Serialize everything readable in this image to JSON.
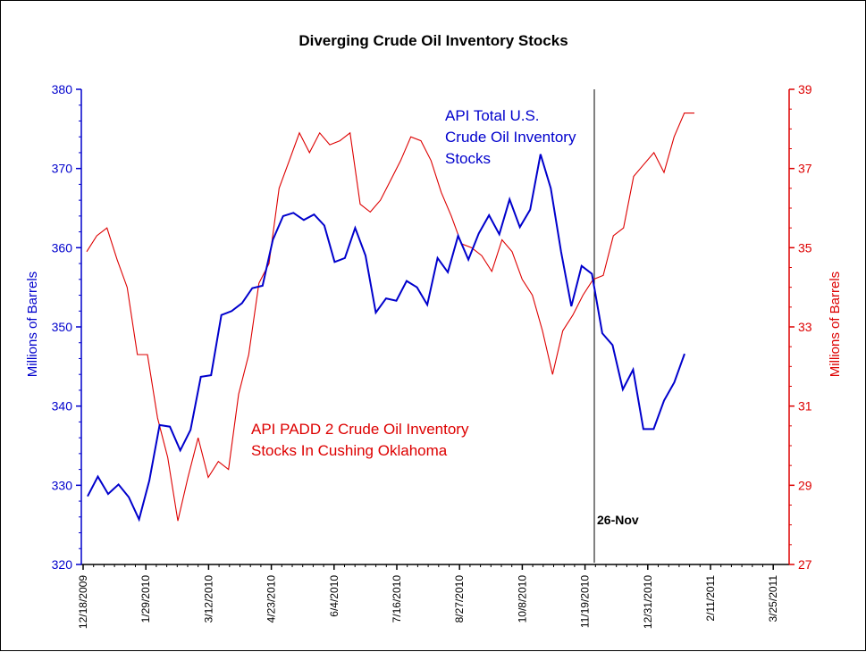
{
  "chart_data": {
    "type": "line",
    "title": "Diverging Crude Oil Inventory Stocks",
    "ylabel_left": "Millions of Barrels",
    "ylabel_right": "Millions of Barrels",
    "x_tick_labels": [
      "12/18/2009",
      "1/29/2010",
      "3/12/2010",
      "4/23/2010",
      "6/4/2010",
      "7/16/2010",
      "8/27/2010",
      "10/8/2010",
      "11/19/2010",
      "12/31/2010",
      "2/11/2011",
      "3/25/2011"
    ],
    "ylim_left": [
      320,
      380
    ],
    "yticks_left": [
      320,
      330,
      340,
      350,
      360,
      370,
      380
    ],
    "ylim_right": [
      27,
      39
    ],
    "yticks_right": [
      27,
      29,
      31,
      33,
      35,
      37,
      39
    ],
    "series": [
      {
        "name": "API Total U.S. Crude Oil Inventory Stocks",
        "axis": "left",
        "color": "#0000cc",
        "values": [
          328.6,
          331.1,
          328.9,
          330.1,
          328.5,
          325.7,
          330.6,
          337.6,
          337.4,
          334.4,
          337.0,
          343.7,
          343.9,
          351.5,
          352.0,
          353.0,
          354.9,
          355.2,
          361.0,
          364.0,
          364.4,
          363.5,
          364.2,
          362.8,
          358.2,
          358.7,
          362.5,
          359.0,
          351.8,
          353.6,
          353.3,
          355.8,
          355.0,
          352.8,
          358.7,
          356.9,
          361.5,
          358.5,
          361.8,
          364.1,
          361.7,
          366.1,
          362.6,
          364.8,
          371.8,
          367.5,
          359.5,
          352.6,
          357.7,
          356.7,
          349.2,
          347.7,
          342.1,
          344.6,
          337.1,
          337.1,
          340.7,
          343.0,
          346.6
        ]
      },
      {
        "name": "API PADD 2 Crude Oil Inventory Stocks In Cushing Oklahoma",
        "axis": "right",
        "color": "#dd0000",
        "values": [
          34.9,
          35.3,
          35.5,
          34.7,
          34.0,
          32.3,
          32.3,
          30.7,
          29.7,
          28.1,
          29.2,
          30.2,
          29.2,
          29.6,
          29.4,
          31.3,
          32.3,
          34.1,
          34.6,
          36.5,
          37.2,
          37.9,
          37.4,
          37.9,
          37.6,
          37.7,
          37.9,
          36.1,
          35.9,
          36.2,
          36.7,
          37.2,
          37.8,
          37.7,
          37.2,
          36.4,
          35.8,
          35.1,
          35.0,
          34.8,
          34.4,
          35.2,
          34.9,
          34.2,
          33.8,
          32.9,
          31.8,
          32.9,
          33.3,
          33.8,
          34.2,
          34.3,
          35.3,
          35.5,
          36.8,
          37.1,
          37.4,
          36.9,
          37.8,
          38.4,
          38.4
        ]
      }
    ],
    "annotations": {
      "blue_label_lines": [
        "API Total U.S.",
        "Crude Oil Inventory",
        "Stocks"
      ],
      "red_label_lines": [
        "API PADD 2 Crude Oil Inventory",
        "Stocks In Cushing Oklahoma"
      ],
      "marker_label": "26-Nov"
    },
    "grid": false,
    "legend": "none"
  }
}
